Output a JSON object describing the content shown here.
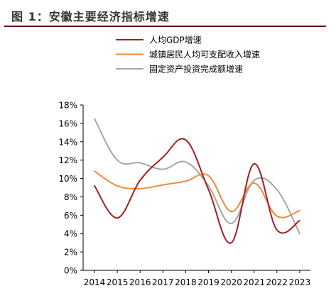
{
  "figure": {
    "title": "图 1：安徽主要经济指标增速"
  },
  "chart_data": {
    "type": "line",
    "x": [
      "2014",
      "2015",
      "2016",
      "2017",
      "2018",
      "2019",
      "2020",
      "2021",
      "2022",
      "2023"
    ],
    "ylim": [
      0,
      18
    ],
    "yticks": [
      0,
      2,
      4,
      6,
      8,
      10,
      12,
      14,
      16,
      18
    ],
    "ytick_labels": [
      "0%",
      "2%",
      "4%",
      "6%",
      "8%",
      "10%",
      "12%",
      "14%",
      "16%",
      "18%"
    ],
    "grid": false,
    "legend_position": "top-center",
    "series": [
      {
        "name": "人均GDP增速",
        "color": "#a51e22",
        "values": [
          9.2,
          5.7,
          9.8,
          12.3,
          14.2,
          8.8,
          3.0,
          11.6,
          4.4,
          5.4
        ]
      },
      {
        "name": "城镇居民人均可支配收入增速",
        "color": "#ee8a3b",
        "values": [
          10.8,
          9.2,
          8.9,
          9.3,
          9.7,
          10.3,
          6.4,
          9.5,
          5.9,
          6.5
        ]
      },
      {
        "name": "固定资产投资完成额增速",
        "color": "#a6a6a6",
        "values": [
          16.5,
          12.0,
          11.7,
          11.0,
          11.8,
          9.2,
          5.1,
          9.8,
          8.8,
          4.0
        ]
      }
    ]
  }
}
